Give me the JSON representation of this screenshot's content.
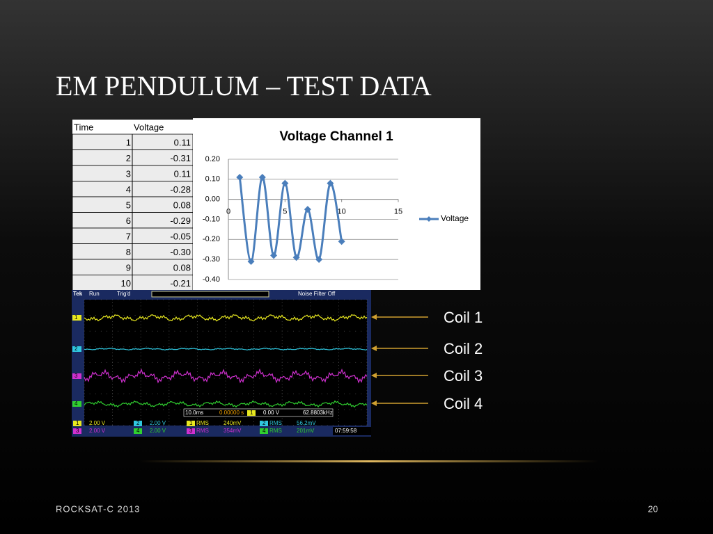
{
  "slide": {
    "title": "EM PENDULUM – TEST DATA",
    "footer": "ROCKSAT-C 2013",
    "page_number": "20",
    "annotations": [
      "Coil 1",
      "Coil 2",
      "Coil 3",
      "Coil 4"
    ]
  },
  "table": {
    "header": [
      "Time",
      "Voltage"
    ],
    "rows": [
      [
        "1",
        "0.11"
      ],
      [
        "2",
        "-0.31"
      ],
      [
        "3",
        "0.11"
      ],
      [
        "4",
        "-0.28"
      ],
      [
        "5",
        "0.08"
      ],
      [
        "6",
        "-0.29"
      ],
      [
        "7",
        "-0.05"
      ],
      [
        "8",
        "-0.30"
      ],
      [
        "9",
        "0.08"
      ],
      [
        "10",
        "-0.21"
      ]
    ]
  },
  "chart_data": {
    "type": "line",
    "title": "Voltage Channel 1",
    "x": [
      1,
      2,
      3,
      4,
      5,
      6,
      7,
      8,
      9,
      10
    ],
    "series": [
      {
        "name": "Voltage",
        "color": "#4a7ebb",
        "values": [
          0.11,
          -0.31,
          0.11,
          -0.28,
          0.08,
          -0.29,
          -0.05,
          -0.3,
          0.08,
          -0.21
        ]
      }
    ],
    "xlim": [
      0,
      15
    ],
    "xticks": [
      0,
      5,
      10,
      15
    ],
    "ylim": [
      -0.4,
      0.2
    ],
    "yticks": [
      {
        "value": 0.2,
        "label": "0.20"
      },
      {
        "value": 0.1,
        "label": "0.10"
      },
      {
        "value": 0,
        "label": "0.00"
      },
      {
        "value": -0.1,
        "label": "-0.10"
      },
      {
        "value": -0.2,
        "label": "-0.20"
      },
      {
        "value": -0.3,
        "label": "-0.30"
      },
      {
        "value": -0.4,
        "label": "-0.40"
      }
    ],
    "grid": true,
    "legend": "right"
  },
  "oscilloscope": {
    "brand": "Tek",
    "status": "Run",
    "trigger": "Trig'd",
    "filter": "Noise Filter Off",
    "rms_label": "RMS",
    "channels": [
      {
        "label": "1",
        "color": "#e8e820",
        "scale": "2.00 V",
        "rms": "240mV"
      },
      {
        "label": "2",
        "color": "#30c8e0",
        "scale": "2.00 V",
        "rms": "56.2mV"
      },
      {
        "label": "3",
        "color": "#d030d0",
        "scale": "2.00 V",
        "rms": "354mV"
      },
      {
        "label": "4",
        "color": "#30d030",
        "scale": "2.00 V",
        "rms": "201mV"
      }
    ],
    "timebase": "10.0ms",
    "delay": "0.00000 s",
    "trigger_source": "1",
    "trigger_level": "0.00 V",
    "frequency": "62.8803kHz",
    "clock": "07:59:58"
  }
}
